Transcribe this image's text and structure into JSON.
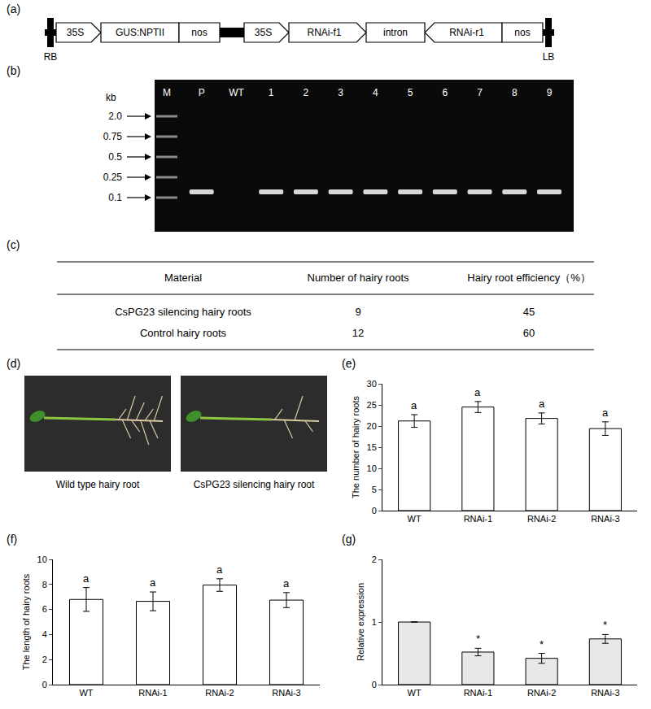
{
  "construct": {
    "panel": "(a)",
    "elements": [
      {
        "label": "RB",
        "shape": "border"
      },
      {
        "label": "35S",
        "shape": "promoter"
      },
      {
        "label": "GUS:NPTII",
        "shape": "box"
      },
      {
        "label": "nos",
        "shape": "box"
      },
      {
        "shape": "spacer"
      },
      {
        "label": "35S",
        "shape": "promoter"
      },
      {
        "label": "RNAi-f1",
        "shape": "forward"
      },
      {
        "label": "intron",
        "shape": "box"
      },
      {
        "label": "RNAi-r1",
        "shape": "reverse"
      },
      {
        "label": "nos",
        "shape": "box"
      },
      {
        "label": "LB",
        "shape": "border"
      }
    ]
  },
  "gel": {
    "panel": "(b)",
    "unit": "kb",
    "ladder": [
      "2.0",
      "0.75",
      "0.5",
      "0.25",
      "0.1"
    ],
    "marker_lane": "M",
    "lanes": [
      {
        "label": "M",
        "band": false
      },
      {
        "label": "P",
        "band": true
      },
      {
        "label": "WT",
        "band": false
      },
      {
        "label": "1",
        "band": true
      },
      {
        "label": "2",
        "band": true
      },
      {
        "label": "3",
        "band": true
      },
      {
        "label": "4",
        "band": true
      },
      {
        "label": "5",
        "band": true
      },
      {
        "label": "6",
        "band": true
      },
      {
        "label": "7",
        "band": true
      },
      {
        "label": "8",
        "band": true
      },
      {
        "label": "9",
        "band": true
      }
    ]
  },
  "table": {
    "panel": "(c)",
    "header": [
      "Material",
      "Number of hairy roots",
      "Hairy root efficiency（%）"
    ],
    "rows": [
      [
        "CsPG23 silencing hairy roots",
        9,
        45
      ],
      [
        "Control hairy roots",
        12,
        60
      ]
    ]
  },
  "photos": {
    "panel": "(d)",
    "captions": [
      "Wild type hairy root",
      "CsPG23 silencing hairy root"
    ]
  },
  "chart_data": [
    {
      "panel": "(e)",
      "type": "bar",
      "ylabel": "The number of hairy roots",
      "categories": [
        "WT",
        "RNAi-1",
        "RNAi-2",
        "RNAi-3"
      ],
      "values": [
        21.2,
        24.5,
        21.8,
        19.4
      ],
      "error": [
        1.5,
        1.3,
        1.3,
        1.6
      ],
      "color": "#ffffff",
      "ylim": [
        0,
        30
      ],
      "yticks": [
        0,
        5,
        10,
        15,
        20,
        25,
        30
      ],
      "grid": false,
      "annotations": [
        {
          "category": "WT",
          "text": "a"
        },
        {
          "category": "RNAi-1",
          "text": "a"
        },
        {
          "category": "RNAi-2",
          "text": "a"
        },
        {
          "category": "RNAi-3",
          "text": "a"
        }
      ]
    },
    {
      "panel": "(f)",
      "type": "bar",
      "ylabel": "The length of hairy roots",
      "categories": [
        "WT",
        "RNAi-1",
        "RNAi-2",
        "RNAi-3"
      ],
      "values": [
        6.8,
        6.65,
        7.95,
        6.75
      ],
      "error": [
        0.95,
        0.75,
        0.5,
        0.6
      ],
      "color": "#ffffff",
      "ylim": [
        0,
        10
      ],
      "yticks": [
        0,
        2,
        4,
        6,
        8,
        10
      ],
      "grid": false,
      "annotations": [
        {
          "category": "WT",
          "text": "a"
        },
        {
          "category": "RNAi-1",
          "text": "a"
        },
        {
          "category": "RNAi-2",
          "text": "a"
        },
        {
          "category": "RNAi-3",
          "text": "a"
        }
      ]
    },
    {
      "panel": "(g)",
      "type": "bar",
      "ylabel": "Relative expression",
      "categories": [
        "WT",
        "RNAi-1",
        "RNAi-2",
        "RNAi-3"
      ],
      "values": [
        1,
        0.52,
        0.42,
        0.73
      ],
      "error": [
        0,
        0.06,
        0.08,
        0.07
      ],
      "color": "#e8e8e8",
      "ylim": [
        0,
        2
      ],
      "yticks": [
        0,
        1,
        2
      ],
      "grid": false,
      "annotations": [
        {
          "category": "RNAi-1",
          "text": "*"
        },
        {
          "category": "RNAi-2",
          "text": "*"
        },
        {
          "category": "RNAi-3",
          "text": "*"
        }
      ]
    }
  ]
}
